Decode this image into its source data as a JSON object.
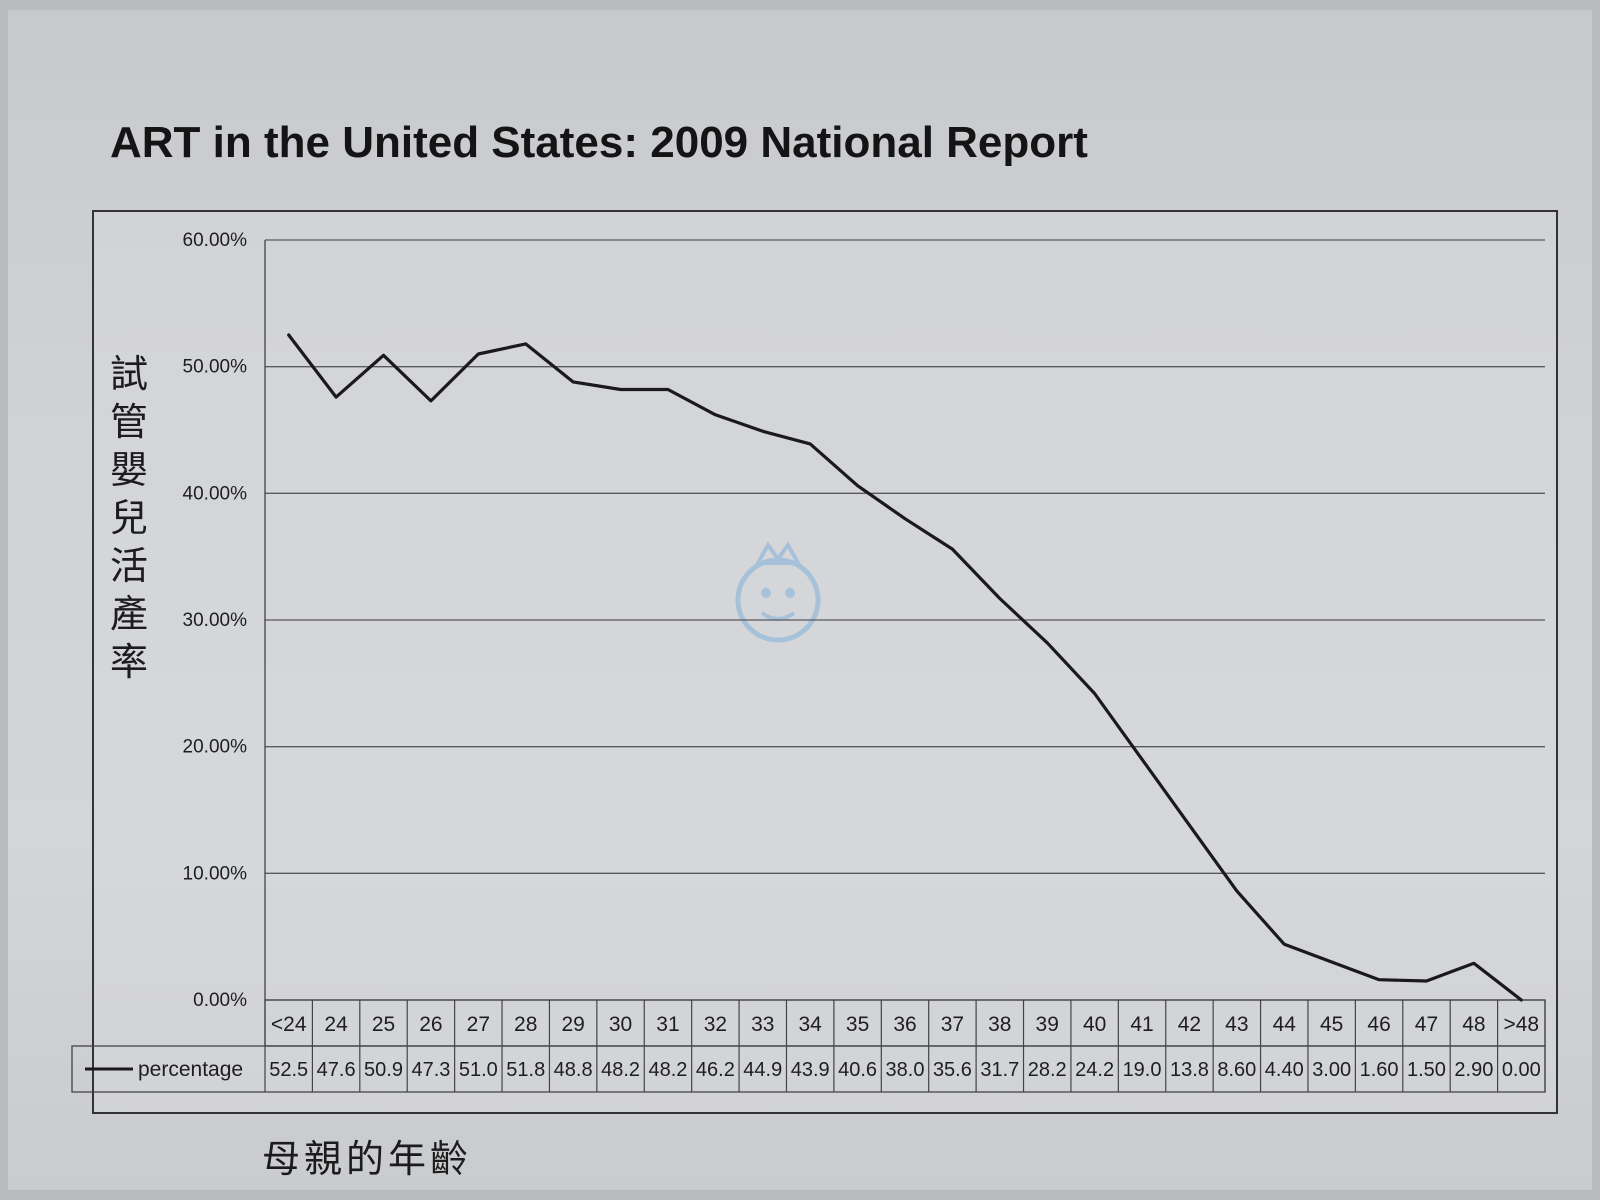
{
  "chart_data": {
    "type": "line",
    "title": "ART in the United States: 2009 National Report",
    "ylabel": "試管嬰兒活產率",
    "xlabel": "母親的年齡",
    "categories": [
      "<24",
      "24",
      "25",
      "26",
      "27",
      "28",
      "29",
      "30",
      "31",
      "32",
      "33",
      "34",
      "35",
      "36",
      "37",
      "38",
      "39",
      "40",
      "41",
      "42",
      "43",
      "44",
      "45",
      "46",
      "47",
      "48",
      ">48"
    ],
    "series": [
      {
        "name": "percentage",
        "values": [
          52.5,
          47.6,
          50.9,
          47.3,
          51.0,
          51.8,
          48.8,
          48.2,
          48.2,
          46.2,
          44.9,
          43.9,
          40.6,
          38.0,
          35.6,
          31.7,
          28.2,
          24.2,
          19.0,
          13.8,
          8.6,
          4.4,
          3.0,
          1.6,
          1.5,
          2.9,
          0.0
        ],
        "value_labels": [
          "52.5",
          "47.6",
          "50.9",
          "47.3",
          "51.0",
          "51.8",
          "48.8",
          "48.2",
          "48.2",
          "46.2",
          "44.9",
          "43.9",
          "40.6",
          "38.0",
          "35.6",
          "31.7",
          "28.2",
          "24.2",
          "19.0",
          "13.8",
          "8.60",
          "4.40",
          "3.00",
          "1.60",
          "1.50",
          "2.90",
          "0.00"
        ]
      }
    ],
    "yticks": [
      "0.00%",
      "10.00%",
      "20.00%",
      "30.00%",
      "40.00%",
      "50.00%",
      "60.00%"
    ],
    "ytick_values": [
      0,
      10,
      20,
      30,
      40,
      50,
      60
    ],
    "ylim": [
      0,
      60
    ],
    "grid": true,
    "legend": "data table below x-axis",
    "line_color": "#1a1a1a"
  }
}
